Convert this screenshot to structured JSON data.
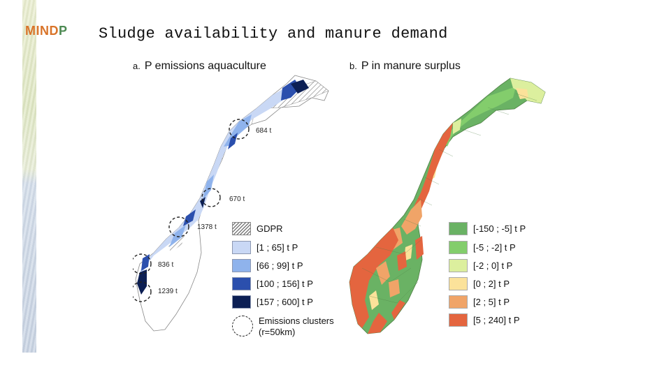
{
  "logo": {
    "text_main": "MIND",
    "text_accent": "P"
  },
  "title": "Sludge availability and manure demand",
  "panel_a": {
    "letter": "a.",
    "title": "P emissions aquaculture",
    "cluster_labels": [
      "684 t",
      "670 t",
      "1378 t",
      "836 t",
      "1239 t"
    ],
    "legend": [
      {
        "label": "GDPR",
        "kind": "hatch"
      },
      {
        "label": "[1 ; 65] t P",
        "color": "#c9d8f5"
      },
      {
        "label": "[66 ; 99] t P",
        "color": "#8fb3ec"
      },
      {
        "label": "[100 ; 156] t P",
        "color": "#2b4fad"
      },
      {
        "label": "[157 ; 600]  t P",
        "color": "#0c1f54"
      },
      {
        "label": "Emissions clusters",
        "label2": "(r=50km)",
        "kind": "circle"
      }
    ]
  },
  "panel_b": {
    "letter": "b.",
    "title": "P in manure surplus",
    "legend": [
      {
        "label": "[-150 ; -5] t P",
        "color": "#6ab264"
      },
      {
        "label": "[-5 ; -2]  t P",
        "color": "#83cd6c"
      },
      {
        "label": "[-2 ; 0]  t P",
        "color": "#dcef9e"
      },
      {
        "label": "[0 ; 2]  t P",
        "color": "#fbe29a"
      },
      {
        "label": "[2 ; 5]  t P",
        "color": "#f0a468"
      },
      {
        "label": "[5 ; 240] t P",
        "color": "#e4653f"
      }
    ]
  }
}
